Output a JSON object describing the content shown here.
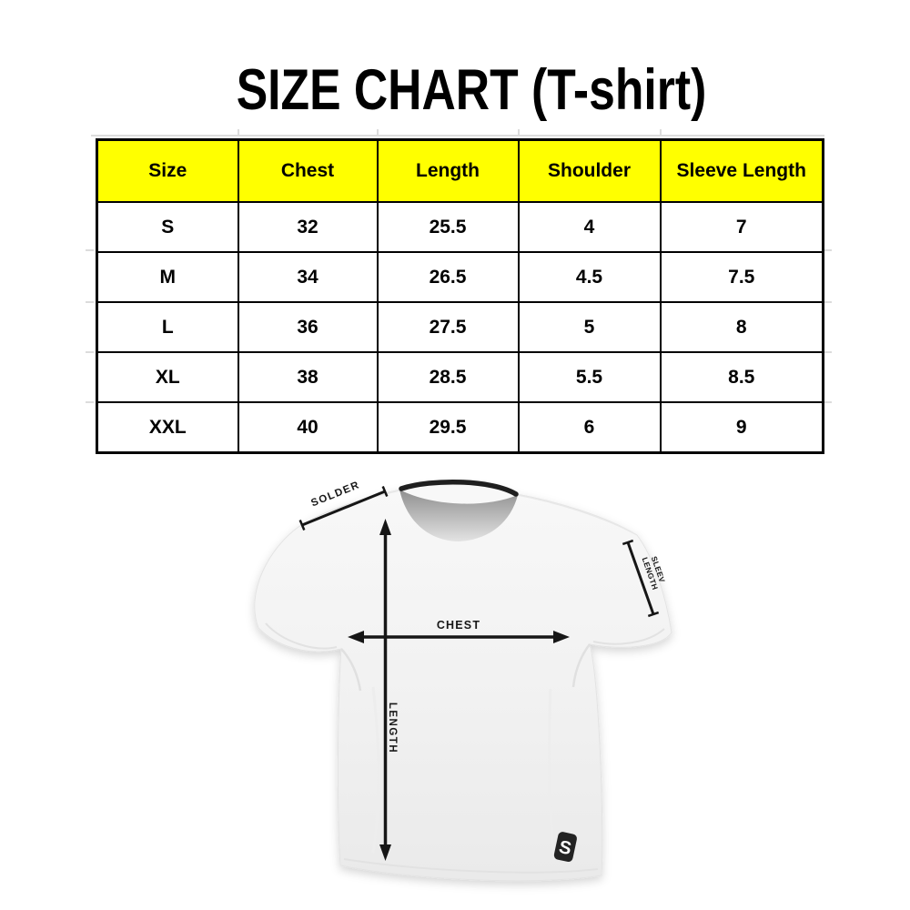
{
  "title": "SIZE CHART (T-shirt)",
  "chart_data": {
    "type": "table",
    "title": "SIZE CHART (T-shirt)",
    "columns": [
      "Size",
      "Chest",
      "Length",
      "Shoulder",
      "Sleeve Length"
    ],
    "rows": [
      [
        "S",
        "32",
        "25.5",
        "4",
        "7"
      ],
      [
        "M",
        "34",
        "26.5",
        "4.5",
        "7.5"
      ],
      [
        "L",
        "36",
        "27.5",
        "5",
        "8"
      ],
      [
        "XL",
        "38",
        "28.5",
        "5.5",
        "8.5"
      ],
      [
        "XXL",
        "40",
        "29.5",
        "6",
        "9"
      ]
    ],
    "header_bg_color": "#ffff00",
    "border_color": "#000000",
    "legend_position": "none",
    "grid": "on"
  },
  "diagram": {
    "shoulder_label": "SOLDER",
    "sleeve_label_line1": "SLEEV",
    "sleeve_label_line2": "LENGTH",
    "chest_label": "CHEST",
    "length_label": "LENGTH",
    "logo_letter": "S",
    "arrow_color": "#161616",
    "shirt_color": "#f1f1f1",
    "collar_color": "#1f1f1f"
  }
}
